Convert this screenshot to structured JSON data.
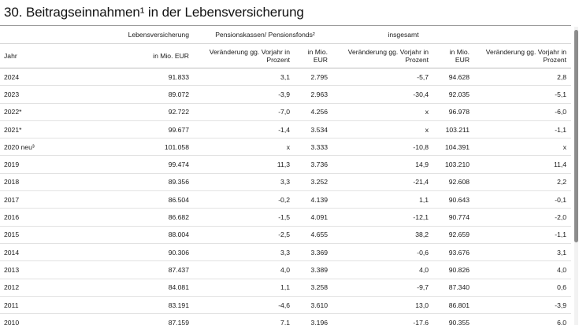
{
  "title": "30. Beitragseinnahmen¹ in der Lebensversicherung",
  "groups": {
    "lebensversicherung": "Lebensversicherung",
    "pensionskassen": "Pensionskassen/ Pensionsfonds²",
    "insgesamt": "insgesamt"
  },
  "columns": {
    "jahr": "Jahr",
    "mio1": "in Mio. EUR",
    "veraenderung1": "Veränderung gg. Vorjahr in Prozent",
    "mio2": "in Mio. EUR",
    "veraenderung2": "Veränderung gg. Vorjahr in Prozent",
    "mio3": "in Mio. EUR",
    "veraenderung3": "Veränderung gg. Vorjahr in Prozent"
  },
  "rows": [
    [
      "2024",
      "91.833",
      "3,1",
      "2.795",
      "-5,7",
      "94.628",
      "2,8"
    ],
    [
      "2023",
      "89.072",
      "-3,9",
      "2.963",
      "-30,4",
      "92.035",
      "-5,1"
    ],
    [
      "2022*",
      "92.722",
      "-7,0",
      "4.256",
      "x",
      "96.978",
      "-6,0"
    ],
    [
      "2021*",
      "99.677",
      "-1,4",
      "3.534",
      "x",
      "103.211",
      "-1,1"
    ],
    [
      "2020 neu³",
      "101.058",
      "x",
      "3.333",
      "-10,8",
      "104.391",
      "x"
    ],
    [
      "2019",
      "99.474",
      "11,3",
      "3.736",
      "14,9",
      "103.210",
      "11,4"
    ],
    [
      "2018",
      "89.356",
      "3,3",
      "3.252",
      "-21,4",
      "92.608",
      "2,2"
    ],
    [
      "2017",
      "86.504",
      "-0,2",
      "4.139",
      "1,1",
      "90.643",
      "-0,1"
    ],
    [
      "2016",
      "86.682",
      "-1,5",
      "4.091",
      "-12,1",
      "90.774",
      "-2,0"
    ],
    [
      "2015",
      "88.004",
      "-2,5",
      "4.655",
      "38,2",
      "92.659",
      "-1,1"
    ],
    [
      "2014",
      "90.306",
      "3,3",
      "3.369",
      "-0,6",
      "93.676",
      "3,1"
    ],
    [
      "2013",
      "87.437",
      "4,0",
      "3.389",
      "4,0",
      "90.826",
      "4,0"
    ],
    [
      "2012",
      "84.081",
      "1,1",
      "3.258",
      "-9,7",
      "87.340",
      "0,6"
    ],
    [
      "2011",
      "83.191",
      "-4,6",
      "3.610",
      "13,0",
      "86.801",
      "-3,9"
    ],
    [
      "2010",
      "87.159",
      "7,1",
      "3.196",
      "-17,6",
      "90.355",
      "6,0"
    ]
  ]
}
